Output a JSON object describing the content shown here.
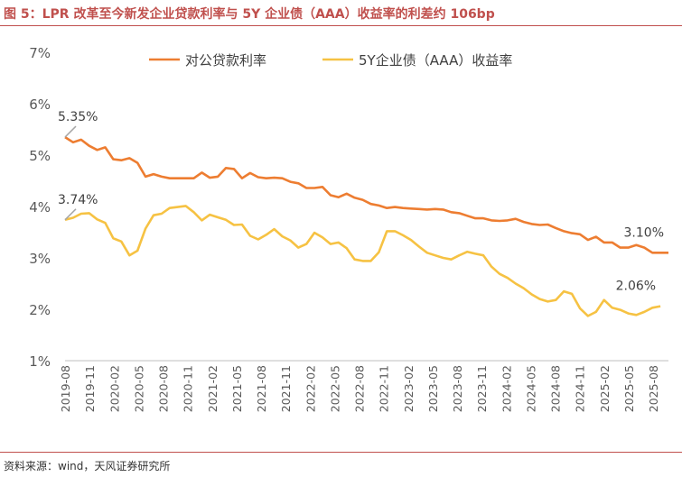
{
  "figure_title": "图 5：LPR 改革至今新发企业贷款利率与 5Y 企业债（AAA）收益率的利差约 106bp",
  "source": "资料来源：wind，天风证券研究所",
  "chart_data": {
    "type": "line",
    "title": "",
    "xlabel": "",
    "ylabel": "",
    "ylim": [
      1,
      7
    ],
    "y_ticks": [
      "1%",
      "2%",
      "3%",
      "4%",
      "5%",
      "6%",
      "7%"
    ],
    "x_tick_labels": [
      "2019-08",
      "2019-11",
      "2020-02",
      "2020-05",
      "2020-08",
      "2020-11",
      "2021-02",
      "2021-05",
      "2021-08",
      "2021-11",
      "2022-02",
      "2022-05",
      "2022-08",
      "2022-11",
      "2023-02",
      "2023-05",
      "2023-08",
      "2023-11",
      "2024-02",
      "2024-05",
      "2024-08",
      "2024-11",
      "2025-02",
      "2025-05",
      "2025-08"
    ],
    "grid": false,
    "legend_position": "top",
    "series": [
      {
        "name": "对公贷款利率",
        "color": "#ed7d31",
        "values": [
          5.35,
          5.25,
          5.3,
          5.18,
          5.1,
          5.15,
          4.92,
          4.9,
          4.94,
          4.85,
          4.58,
          4.63,
          4.58,
          4.55,
          4.55,
          4.55,
          4.55,
          4.66,
          4.56,
          4.58,
          4.75,
          4.73,
          4.55,
          4.65,
          4.57,
          4.55,
          4.56,
          4.55,
          4.48,
          4.45,
          4.36,
          4.36,
          4.38,
          4.22,
          4.18,
          4.25,
          4.17,
          4.13,
          4.05,
          4.02,
          3.97,
          3.99,
          3.97,
          3.96,
          3.95,
          3.94,
          3.95,
          3.94,
          3.89,
          3.87,
          3.82,
          3.77,
          3.77,
          3.73,
          3.72,
          3.73,
          3.76,
          3.7,
          3.66,
          3.64,
          3.65,
          3.58,
          3.52,
          3.48,
          3.46,
          3.35,
          3.41,
          3.3,
          3.3,
          3.2,
          3.2,
          3.25,
          3.2,
          3.1,
          3.1,
          3.1
        ],
        "start_label": "5.35%",
        "end_label": "3.10%"
      },
      {
        "name": "5Y企业债（AAA）收益率",
        "color": "#f6c243",
        "values": [
          3.74,
          3.78,
          3.86,
          3.87,
          3.75,
          3.68,
          3.38,
          3.32,
          3.05,
          3.14,
          3.57,
          3.83,
          3.86,
          3.97,
          3.99,
          4.01,
          3.89,
          3.73,
          3.84,
          3.79,
          3.74,
          3.64,
          3.65,
          3.43,
          3.36,
          3.45,
          3.56,
          3.42,
          3.34,
          3.2,
          3.27,
          3.49,
          3.4,
          3.27,
          3.3,
          3.19,
          2.97,
          2.94,
          2.94,
          3.11,
          3.52,
          3.52,
          3.44,
          3.35,
          3.22,
          3.1,
          3.05,
          3.0,
          2.97,
          3.05,
          3.12,
          3.08,
          3.05,
          2.83,
          2.69,
          2.61,
          2.5,
          2.41,
          2.29,
          2.2,
          2.15,
          2.18,
          2.35,
          2.3,
          2.02,
          1.87,
          1.95,
          2.18,
          2.03,
          1.99,
          1.92,
          1.89,
          1.95,
          2.03,
          2.06
        ],
        "start_label": "3.74%",
        "end_label": "2.06%"
      }
    ]
  }
}
